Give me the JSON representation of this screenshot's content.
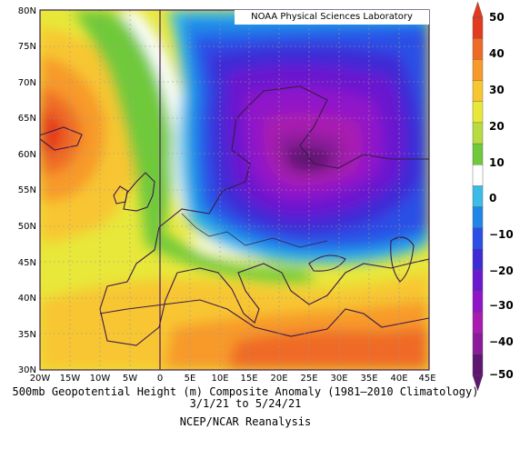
{
  "map": {
    "credit": "NOAA Physical Sciences Laboratory",
    "lat_ticks": [
      "80N",
      "75N",
      "70N",
      "65N",
      "60N",
      "55N",
      "50N",
      "45N",
      "40N",
      "35N",
      "30N"
    ],
    "lon_ticks": [
      "20W",
      "15W",
      "10W",
      "5W",
      "0",
      "5E",
      "10E",
      "15E",
      "20E",
      "25E",
      "30E",
      "35E",
      "40E",
      "45E"
    ],
    "caption_title": "500mb Geopotential Height (m) Composite Anomaly (1981–2010 Climatology)",
    "caption_dates": "3/1/21  to 5/24/21",
    "caption_source": "NCEP/NCAR Reanalysis"
  },
  "colorbar": {
    "labels": [
      "50",
      "40",
      "30",
      "20",
      "10",
      "0",
      "−10",
      "−20",
      "−30",
      "−40",
      "−50"
    ],
    "colors": [
      "#e33b1f",
      "#ef6a25",
      "#f79a2b",
      "#f8c631",
      "#e8e83a",
      "#b8dc3f",
      "#6fc93a",
      "#ffffff",
      "#3bbbe8",
      "#1f86e8",
      "#2b4fe6",
      "#3d2bd6",
      "#6a19cf",
      "#9015c9",
      "#a81ab0",
      "#8a1a9a",
      "#5e1770"
    ]
  },
  "chart_data": {
    "type": "heatmap",
    "title": "500mb Geopotential Height (m) Composite Anomaly (1981–2010 Climatology)",
    "subtitle": "3/1/21  to 5/24/21",
    "source": "NCEP/NCAR Reanalysis",
    "x_range": [
      -20,
      45
    ],
    "y_range": [
      30,
      80
    ],
    "value_range": [
      -50,
      50
    ],
    "features": [
      {
        "name": "positive anomaly center",
        "lon": -17,
        "lat": 62,
        "value": 40
      },
      {
        "name": "negative anomaly center",
        "lon": 25,
        "lat": 58,
        "value": -50
      },
      {
        "name": "positive anomaly band",
        "lon": 25,
        "lat": 33,
        "value": 25
      }
    ]
  }
}
